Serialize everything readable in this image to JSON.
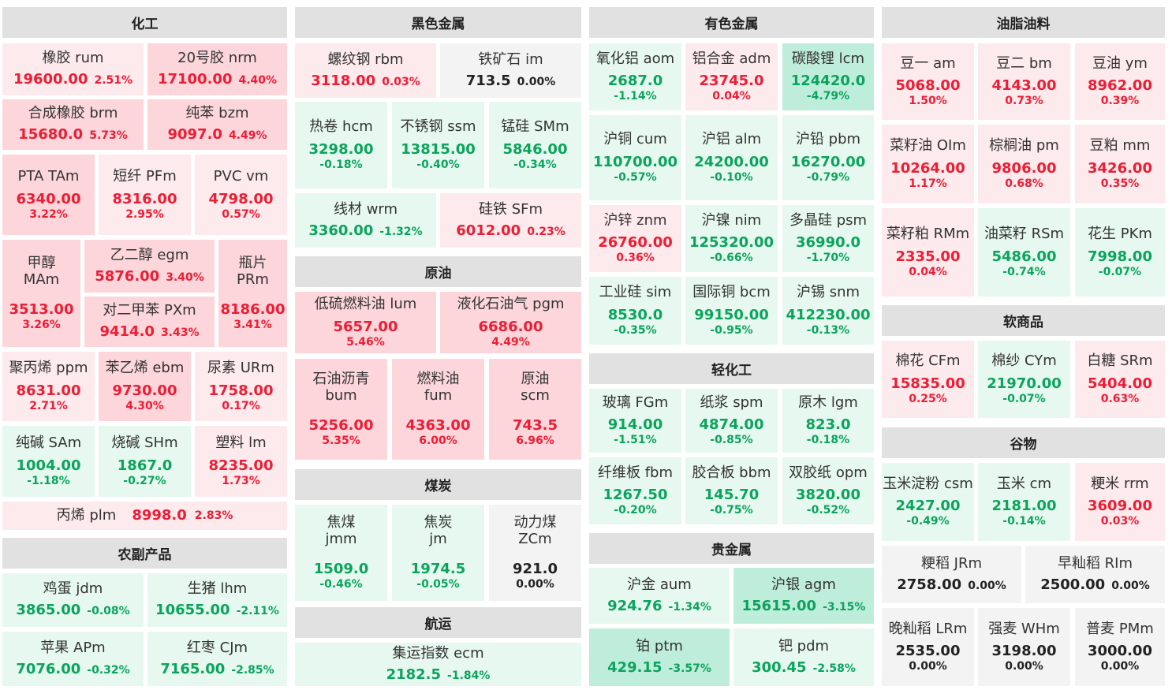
{
  "headers": {
    "chemical": "化工",
    "ferrous": "黑色金属",
    "nonferrous": "有色金属",
    "oils": "油脂油料",
    "crude": "原油",
    "coal": "煤炭",
    "shipping": "航运",
    "agri_products": "农副产品",
    "light_industry": "轻化工",
    "precious": "贵金属",
    "softs": "软商品",
    "grains": "谷物"
  },
  "cells": [
    {
      "id": "rum",
      "name": "橡胶  rum",
      "value": "19600.00",
      "pct": "2.51%",
      "dir": "up"
    },
    {
      "id": "nrm",
      "name": "20号胶  nrm",
      "value": "17100.00",
      "pct": "4.40%",
      "dir": "up"
    },
    {
      "id": "brm",
      "name": "合成橡胶  brm",
      "value": "15680.0",
      "pct": "5.73%",
      "dir": "up"
    },
    {
      "id": "bzm",
      "name": "纯苯  bzm",
      "value": "9097.0",
      "pct": "4.49%",
      "dir": "up"
    },
    {
      "id": "tam",
      "name": "PTA  TAm",
      "value": "6340.00",
      "pct": "3.22%",
      "dir": "up"
    },
    {
      "id": "pfm",
      "name": "短纤  PFm",
      "value": "8316.00",
      "pct": "2.95%",
      "dir": "up"
    },
    {
      "id": "vm",
      "name": "PVC  vm",
      "value": "4798.00",
      "pct": "0.57%",
      "dir": "up"
    },
    {
      "id": "mam",
      "name": "甲醇",
      "sub": "MAm",
      "value": "3513.00",
      "pct": "3.26%",
      "dir": "up"
    },
    {
      "id": "egm",
      "name": "乙二醇  egm",
      "value": "5876.00",
      "pct": "3.40%",
      "dir": "up"
    },
    {
      "id": "pxm",
      "name": "对二甲苯  PXm",
      "value": "9414.0",
      "pct": "3.43%",
      "dir": "up"
    },
    {
      "id": "prm",
      "name": "瓶片",
      "sub": "PRm",
      "value": "8186.00",
      "pct": "3.41%",
      "dir": "up"
    },
    {
      "id": "ppm",
      "name": "聚丙烯  ppm",
      "value": "8631.00",
      "pct": "2.71%",
      "dir": "up"
    },
    {
      "id": "ebm",
      "name": "苯乙烯  ebm",
      "value": "9730.00",
      "pct": "4.30%",
      "dir": "up"
    },
    {
      "id": "urm",
      "name": "尿素  URm",
      "value": "1758.00",
      "pct": "0.17%",
      "dir": "up"
    },
    {
      "id": "sam",
      "name": "纯碱  SAm",
      "value": "1004.00",
      "pct": "-1.18%",
      "dir": "dn"
    },
    {
      "id": "shm",
      "name": "烧碱  SHm",
      "value": "1867.0",
      "pct": "-0.27%",
      "dir": "dn"
    },
    {
      "id": "lm",
      "name": "塑料  lm",
      "value": "8235.00",
      "pct": "1.73%",
      "dir": "up"
    },
    {
      "id": "plm",
      "name": "丙烯  plm",
      "value": "8998.0",
      "pct": "2.83%",
      "dir": "up"
    },
    {
      "id": "jdm",
      "name": "鸡蛋  jdm",
      "value": "3865.00",
      "pct": "-0.08%",
      "dir": "dn"
    },
    {
      "id": "lhm",
      "name": "生猪  lhm",
      "value": "10655.00",
      "pct": "-2.11%",
      "dir": "dn"
    },
    {
      "id": "apm",
      "name": "苹果  APm",
      "value": "7076.00",
      "pct": "-0.32%",
      "dir": "dn"
    },
    {
      "id": "cjm",
      "name": "红枣  CJm",
      "value": "7165.00",
      "pct": "-2.85%",
      "dir": "dn"
    },
    {
      "id": "rbm",
      "name": "螺纹钢  rbm",
      "value": "3118.00",
      "pct": "0.03%",
      "dir": "up"
    },
    {
      "id": "im",
      "name": "铁矿石  im",
      "value": "713.5",
      "pct": "0.00%",
      "dir": "fl"
    },
    {
      "id": "hcm",
      "name": "热卷  hcm",
      "value": "3298.00",
      "pct": "-0.18%",
      "dir": "dn"
    },
    {
      "id": "ssm",
      "name": "不锈钢  ssm",
      "value": "13815.00",
      "pct": "-0.40%",
      "dir": "dn"
    },
    {
      "id": "smm",
      "name": "锰硅  SMm",
      "value": "5846.00",
      "pct": "-0.34%",
      "dir": "dn"
    },
    {
      "id": "wrm",
      "name": "线材  wrm",
      "value": "3360.00",
      "pct": "-1.32%",
      "dir": "dn"
    },
    {
      "id": "sfm",
      "name": "硅铁  SFm",
      "value": "6012.00",
      "pct": "0.23%",
      "dir": "up"
    },
    {
      "id": "lum",
      "name": "低硫燃料油  lum",
      "value": "5657.00",
      "pct": "5.46%",
      "dir": "up"
    },
    {
      "id": "pgm",
      "name": "液化石油气  pgm",
      "value": "6686.00",
      "pct": "4.49%",
      "dir": "up"
    },
    {
      "id": "bum",
      "name": "石油沥青",
      "sub": "bum",
      "value": "5256.00",
      "pct": "5.35%",
      "dir": "up"
    },
    {
      "id": "fum",
      "name": "燃料油",
      "sub": "fum",
      "value": "4363.00",
      "pct": "6.00%",
      "dir": "up"
    },
    {
      "id": "scm",
      "name": "原油",
      "sub": "scm",
      "value": "743.5",
      "pct": "6.96%",
      "dir": "up"
    },
    {
      "id": "jmm",
      "name": "焦煤",
      "sub": "jmm",
      "value": "1509.0",
      "pct": "-0.46%",
      "dir": "dn"
    },
    {
      "id": "jm",
      "name": "焦炭",
      "sub": "jm",
      "value": "1974.5",
      "pct": "-0.05%",
      "dir": "dn"
    },
    {
      "id": "zcm",
      "name": "动力煤",
      "sub": "ZCm",
      "value": "921.0",
      "pct": "0.00%",
      "dir": "fl"
    },
    {
      "id": "ecm",
      "name": "集运指数  ecm",
      "value": "2182.5",
      "pct": "-1.84%",
      "dir": "dn"
    },
    {
      "id": "aom",
      "name": "氧化铝  aom",
      "value": "2687.0",
      "pct": "-1.14%",
      "dir": "dn"
    },
    {
      "id": "adm",
      "name": "铝合金  adm",
      "value": "23745.0",
      "pct": "0.04%",
      "dir": "up"
    },
    {
      "id": "lcm",
      "name": "碳酸锂  lcm",
      "value": "124420.0",
      "pct": "-4.79%",
      "dir": "dn"
    },
    {
      "id": "cum",
      "name": "沪铜  cum",
      "value": "110700.00",
      "pct": "-0.57%",
      "dir": "dn"
    },
    {
      "id": "alm",
      "name": "沪铝  alm",
      "value": "24200.00",
      "pct": "-0.10%",
      "dir": "dn"
    },
    {
      "id": "pbm",
      "name": "沪铅  pbm",
      "value": "16270.00",
      "pct": "-0.79%",
      "dir": "dn"
    },
    {
      "id": "znm",
      "name": "沪锌  znm",
      "value": "26760.00",
      "pct": "0.36%",
      "dir": "up"
    },
    {
      "id": "nim",
      "name": "沪镍  nim",
      "value": "125320.00",
      "pct": "-0.66%",
      "dir": "dn"
    },
    {
      "id": "psm",
      "name": "多晶硅  psm",
      "value": "36990.0",
      "pct": "-1.70%",
      "dir": "dn"
    },
    {
      "id": "sim",
      "name": "工业硅  sim",
      "value": "8530.0",
      "pct": "-0.35%",
      "dir": "dn"
    },
    {
      "id": "bcm",
      "name": "国际铜  bcm",
      "value": "99150.00",
      "pct": "-0.95%",
      "dir": "dn"
    },
    {
      "id": "snm",
      "name": "沪锡  snm",
      "value": "412230.00",
      "pct": "-0.13%",
      "dir": "dn"
    },
    {
      "id": "fgm",
      "name": "玻璃  FGm",
      "value": "914.00",
      "pct": "-1.51%",
      "dir": "dn"
    },
    {
      "id": "spm",
      "name": "纸浆  spm",
      "value": "4874.00",
      "pct": "-0.85%",
      "dir": "dn"
    },
    {
      "id": "lgm",
      "name": "原木  lgm",
      "value": "823.0",
      "pct": "-0.18%",
      "dir": "dn"
    },
    {
      "id": "fbm",
      "name": "纤维板  fbm",
      "value": "1267.50",
      "pct": "-0.20%",
      "dir": "dn"
    },
    {
      "id": "bbm",
      "name": "胶合板  bbm",
      "value": "145.70",
      "pct": "-0.75%",
      "dir": "dn"
    },
    {
      "id": "opm",
      "name": "双胶纸  opm",
      "value": "3820.00",
      "pct": "-0.52%",
      "dir": "dn"
    },
    {
      "id": "aum",
      "name": "沪金  aum",
      "value": "924.76",
      "pct": "-1.34%",
      "dir": "dn"
    },
    {
      "id": "agm",
      "name": "沪银  agm",
      "value": "15615.00",
      "pct": "-3.15%",
      "dir": "dn"
    },
    {
      "id": "ptm",
      "name": "铂  ptm",
      "value": "429.15",
      "pct": "-3.57%",
      "dir": "dn"
    },
    {
      "id": "pdm",
      "name": "钯  pdm",
      "value": "300.45",
      "pct": "-2.58%",
      "dir": "dn"
    },
    {
      "id": "am",
      "name": "豆一  am",
      "value": "5068.00",
      "pct": "1.50%",
      "dir": "up"
    },
    {
      "id": "bm",
      "name": "豆二  bm",
      "value": "4143.00",
      "pct": "0.73%",
      "dir": "up"
    },
    {
      "id": "ym",
      "name": "豆油  ym",
      "value": "8962.00",
      "pct": "0.39%",
      "dir": "up"
    },
    {
      "id": "olm",
      "name": "菜籽油  OIm",
      "value": "10264.00",
      "pct": "1.17%",
      "dir": "up"
    },
    {
      "id": "pm",
      "name": "棕榈油  pm",
      "value": "9806.00",
      "pct": "0.68%",
      "dir": "up"
    },
    {
      "id": "mm",
      "name": "豆粕  mm",
      "value": "3426.00",
      "pct": "0.35%",
      "dir": "up"
    },
    {
      "id": "rmm",
      "name": "菜籽粕  RMm",
      "value": "2335.00",
      "pct": "0.04%",
      "dir": "up"
    },
    {
      "id": "rsm",
      "name": "油菜籽  RSm",
      "value": "5486.00",
      "pct": "-0.74%",
      "dir": "dn"
    },
    {
      "id": "pkm",
      "name": "花生  PKm",
      "value": "7998.00",
      "pct": "-0.07%",
      "dir": "dn"
    },
    {
      "id": "cfm",
      "name": "棉花  CFm",
      "value": "15835.00",
      "pct": "0.25%",
      "dir": "up"
    },
    {
      "id": "cym",
      "name": "棉纱  CYm",
      "value": "21970.00",
      "pct": "-0.07%",
      "dir": "dn"
    },
    {
      "id": "srm",
      "name": "白糖  SRm",
      "value": "5404.00",
      "pct": "0.63%",
      "dir": "up"
    },
    {
      "id": "csm",
      "name": "玉米淀粉  csm",
      "value": "2427.00",
      "pct": "-0.49%",
      "dir": "dn"
    },
    {
      "id": "cm",
      "name": "玉米  cm",
      "value": "2181.00",
      "pct": "-0.14%",
      "dir": "dn"
    },
    {
      "id": "rrm",
      "name": "粳米  rrm",
      "value": "3609.00",
      "pct": "0.03%",
      "dir": "up"
    },
    {
      "id": "jrm",
      "name": "粳稻  JRm",
      "value": "2758.00",
      "pct": "0.00%",
      "dir": "fl"
    },
    {
      "id": "rim",
      "name": "早籼稻  RIm",
      "value": "2500.00",
      "pct": "0.00%",
      "dir": "fl"
    },
    {
      "id": "lrm",
      "name": "晚籼稻  LRm",
      "value": "2535.00",
      "pct": "0.00%",
      "dir": "fl"
    },
    {
      "id": "whm",
      "name": "强麦  WHm",
      "value": "3198.00",
      "pct": "0.00%",
      "dir": "fl"
    },
    {
      "id": "pmm",
      "name": "普麦  PMm",
      "value": "3000.00",
      "pct": "0.00%",
      "dir": "fl"
    }
  ]
}
